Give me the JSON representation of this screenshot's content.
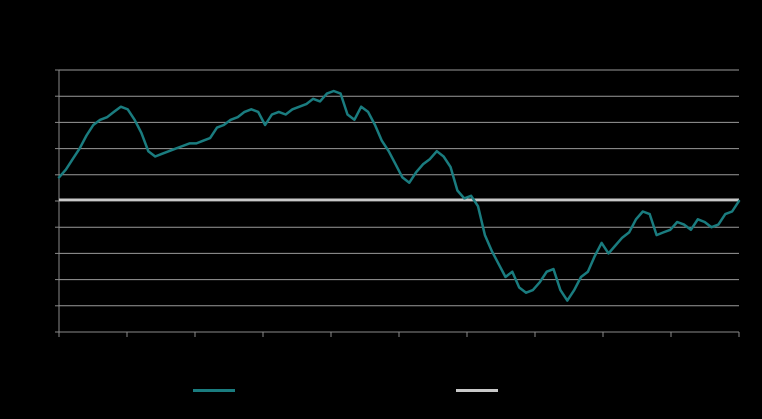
{
  "chart_data": {
    "type": "line",
    "title": "",
    "xlabel": "",
    "ylabel": "",
    "grid": true,
    "legend_placement": "bottom",
    "colors": {
      "background": "#000000",
      "gridline": "#9a9a9a",
      "axis": "#8a8a8a",
      "series_main": "#1a7c7f",
      "series_reference": "#c8c8c8"
    },
    "x_tick_count": 11,
    "ylim": [
      0,
      10
    ],
    "series": [
      {
        "name": "",
        "color": "#1a7c7f",
        "x_range": [
          0,
          100
        ],
        "values": [
          5.9,
          6.2,
          6.6,
          7.0,
          7.5,
          7.9,
          8.1,
          8.2,
          8.4,
          8.6,
          8.5,
          8.1,
          7.6,
          6.9,
          6.7,
          6.8,
          6.9,
          7.0,
          7.1,
          7.2,
          7.2,
          7.3,
          7.4,
          7.8,
          7.9,
          8.1,
          8.2,
          8.4,
          8.5,
          8.4,
          7.9,
          8.3,
          8.4,
          8.3,
          8.5,
          8.6,
          8.7,
          8.9,
          8.8,
          9.1,
          9.2,
          9.1,
          8.3,
          8.1,
          8.6,
          8.4,
          7.9,
          7.3,
          6.9,
          6.4,
          5.9,
          5.7,
          6.1,
          6.4,
          6.6,
          6.9,
          6.7,
          6.3,
          5.4,
          5.1,
          5.2,
          4.8,
          3.7,
          3.1,
          2.6,
          2.1,
          2.3,
          1.7,
          1.5,
          1.6,
          1.9,
          2.3,
          2.4,
          1.6,
          1.2,
          1.6,
          2.1,
          2.3,
          2.9,
          3.4,
          3.0,
          3.3,
          3.6,
          3.8,
          4.3,
          4.6,
          4.5,
          3.7,
          3.8,
          3.9,
          4.2,
          4.1,
          3.9,
          4.3,
          4.2,
          4.0,
          4.1,
          4.5,
          4.6,
          5.0
        ]
      },
      {
        "name": "",
        "color": "#c8c8c8",
        "x_range": [
          0,
          100
        ],
        "values": [
          5.05,
          5.05
        ]
      }
    ]
  }
}
